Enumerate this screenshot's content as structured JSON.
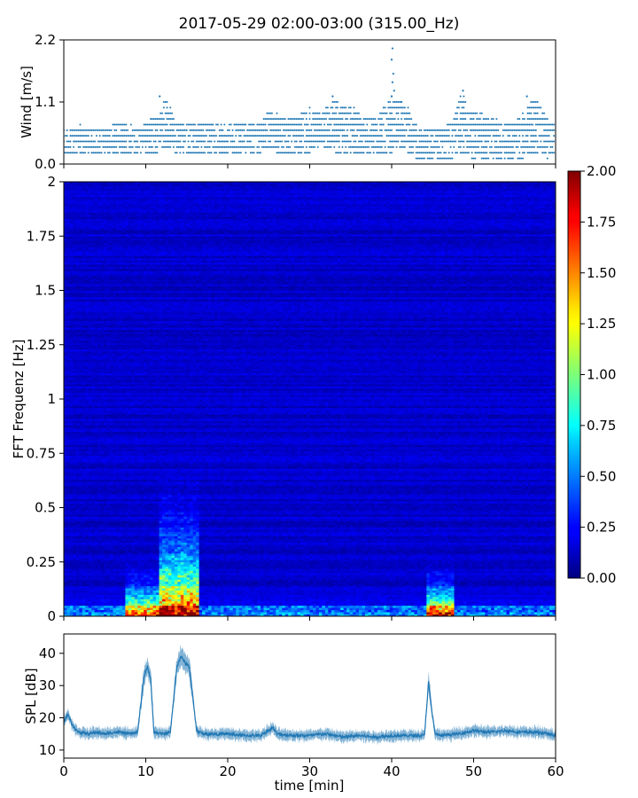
{
  "title": "2017-05-29 02:00-03:00 (315.00_Hz)",
  "chart_data": [
    {
      "type": "scatter",
      "panel": "wind",
      "ylabel": "Wind [m/s]",
      "xlim": [
        0,
        60
      ],
      "ylim": [
        0,
        2.2
      ],
      "yticks": [
        "0.0",
        "1.1",
        "2.2"
      ],
      "ytick_values": [
        0,
        1.1,
        2.2
      ],
      "marker_color": "#1f77b4",
      "levels": [
        0.1,
        0.2,
        0.3,
        0.4,
        0.5,
        0.6,
        0.7,
        0.8,
        0.9,
        1.0,
        1.1,
        1.2
      ],
      "x_sampling_step_min": 0.2,
      "envelope": {
        "x": [
          0,
          2,
          4,
          6,
          7.5,
          9,
          10.5,
          11.5,
          12.5,
          13.5,
          15,
          17,
          19,
          20,
          22,
          24,
          25,
          27,
          29,
          30,
          31.5,
          33,
          34,
          35.5,
          37,
          38.5,
          40,
          41,
          42,
          43,
          44,
          46,
          47.5,
          48.5,
          49.5,
          51,
          53,
          54.5,
          56,
          57.5,
          59,
          60
        ],
        "max": [
          0.6,
          0.7,
          0.6,
          0.7,
          0.8,
          0.6,
          0.8,
          0.9,
          1.2,
          0.8,
          0.7,
          0.7,
          0.7,
          0.8,
          0.7,
          0.7,
          1.0,
          0.8,
          0.9,
          1.0,
          0.9,
          1.2,
          1.0,
          1.0,
          0.8,
          0.9,
          1.2,
          1.1,
          1.0,
          0.7,
          0.6,
          0.6,
          0.8,
          1.3,
          1.0,
          0.9,
          0.8,
          0.7,
          0.9,
          1.2,
          0.8,
          0.7
        ],
        "min": [
          0.2,
          0.2,
          0.2,
          0.2,
          0.1,
          0.2,
          0.1,
          0.2,
          0.3,
          0.2,
          0.2,
          0.2,
          0.2,
          0.2,
          0.2,
          0.2,
          0.3,
          0.1,
          0.2,
          0.2,
          0.3,
          0.2,
          0.2,
          0.1,
          0.2,
          0.2,
          0.2,
          0.3,
          0.2,
          0.1,
          0.1,
          0.1,
          0.1,
          0.2,
          0.1,
          0.1,
          0.1,
          0.1,
          0.1,
          0.2,
          0.1,
          0.2
        ]
      },
      "outliers": [
        {
          "x": 40.1,
          "y": 2.05
        },
        {
          "x": 40.0,
          "y": 1.85
        },
        {
          "x": 40.2,
          "y": 1.6
        },
        {
          "x": 40.1,
          "y": 1.45
        },
        {
          "x": 40.3,
          "y": 1.3
        },
        {
          "x": 40.0,
          "y": 1.2
        },
        {
          "x": 11.7,
          "y": 1.2
        },
        {
          "x": 48.7,
          "y": 1.3
        },
        {
          "x": 32.8,
          "y": 1.2
        },
        {
          "x": 56.5,
          "y": 1.2
        },
        {
          "x": 41.2,
          "y": 1.1
        }
      ]
    },
    {
      "type": "heatmap",
      "panel": "spectrogram",
      "ylabel": "FFT Frequenz [Hz]",
      "xlim": [
        0,
        60
      ],
      "ylim": [
        0,
        2
      ],
      "yticks": [
        "0",
        "0.25",
        "0.5",
        "0.75",
        "1",
        "1.25",
        "1.5",
        "1.75",
        "2"
      ],
      "ytick_values": [
        0,
        0.25,
        0.5,
        0.75,
        1,
        1.25,
        1.5,
        1.75,
        2
      ],
      "colormap": "jet",
      "clim": [
        0,
        2
      ],
      "colorbar_ticks": [
        "0.00",
        "0.25",
        "0.50",
        "0.75",
        "1.00",
        "1.25",
        "1.50",
        "1.75",
        "2.00"
      ],
      "colorbar_tick_values": [
        0,
        0.25,
        0.5,
        0.75,
        1,
        1.25,
        1.5,
        1.75,
        2
      ],
      "time_bins": 160,
      "freq_bins": 200,
      "background_level": 0.15,
      "events": [
        {
          "x_start": 7.5,
          "x_end": 11.5,
          "f_max": 0.3,
          "peak": 1.6
        },
        {
          "x_start": 11.5,
          "x_end": 16.5,
          "f_max": 0.75,
          "peak": 1.9
        },
        {
          "x_start": 44.3,
          "x_end": 47.5,
          "f_max": 0.3,
          "peak": 1.8
        }
      ]
    },
    {
      "type": "line",
      "panel": "spl",
      "xlabel": "time [min]",
      "ylabel": "SPL [dB]",
      "xlim": [
        0,
        60
      ],
      "ylim": [
        7.5,
        46
      ],
      "xticks": [
        "0",
        "10",
        "20",
        "30",
        "40",
        "50",
        "60"
      ],
      "xtick_values": [
        0,
        10,
        20,
        30,
        40,
        50,
        60
      ],
      "yticks": [
        "10",
        "20",
        "30",
        "40"
      ],
      "ytick_values": [
        10,
        20,
        30,
        40
      ],
      "color": "#1f77b4",
      "x": [
        0,
        0.5,
        1,
        1.5,
        2,
        3,
        4,
        5,
        6,
        7,
        8,
        9,
        9.8,
        10.2,
        10.6,
        11,
        12,
        13,
        13.8,
        14.3,
        14.8,
        15.3,
        15.8,
        16.2,
        17,
        18,
        20,
        22,
        24,
        25.5,
        26,
        28,
        30,
        32,
        34,
        36,
        38,
        40,
        42,
        44,
        44.5,
        44.9,
        45.3,
        46,
        48,
        50,
        52,
        54,
        56,
        58,
        60
      ],
      "y": [
        19,
        21,
        18,
        16,
        15.5,
        15,
        15.5,
        15,
        15.5,
        15.5,
        15,
        15.5,
        33,
        36,
        32,
        15.5,
        15,
        15.5,
        36,
        39,
        37,
        36,
        25,
        16,
        15,
        15,
        15,
        14.5,
        14.5,
        17,
        15,
        14.5,
        14.5,
        15,
        14,
        14.5,
        14,
        14.5,
        14.5,
        14.5,
        31,
        22,
        15,
        14.5,
        15,
        16,
        15.5,
        16,
        15.5,
        15.5,
        14.5
      ],
      "band_halfwidth_db": 1.5
    }
  ]
}
